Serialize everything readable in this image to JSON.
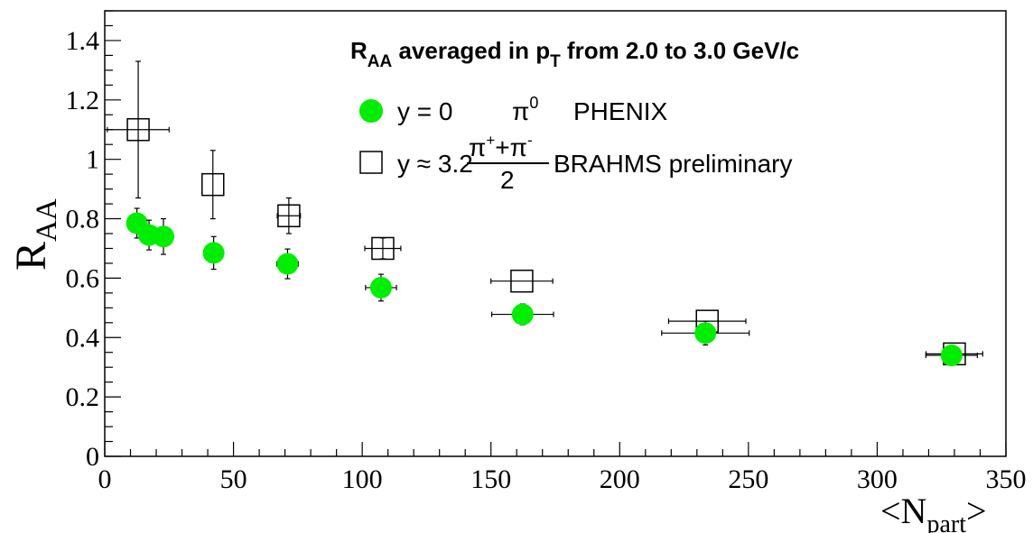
{
  "chart_data": {
    "type": "scatter",
    "title": "",
    "annotation": {
      "header_prefix": "R",
      "header_prefix_sub": "AA",
      "header_mid": " averaged in p",
      "header_mid_sub": "T",
      "header_suffix": " from 2.0 to 3.0 GeV/c"
    },
    "xlabel": {
      "open": "<N",
      "sub": "part",
      "close": ">"
    },
    "ylabel": {
      "main": "R",
      "sub": "AA"
    },
    "xlim": [
      0,
      350
    ],
    "ylim": [
      0,
      1.5
    ],
    "x_ticks": [
      0,
      50,
      100,
      150,
      200,
      250,
      300,
      350
    ],
    "x_tick_labels": [
      "0",
      "50",
      "100",
      "150",
      "200",
      "250",
      "300",
      "350"
    ],
    "y_ticks": [
      0,
      0.2,
      0.4,
      0.6,
      0.8,
      1.0,
      1.2,
      1.4
    ],
    "y_tick_labels": [
      "0",
      "0.2",
      "0.4",
      "0.6",
      "0.8",
      "1",
      "1.2",
      "1.4"
    ],
    "grid": false,
    "legend_position": "top-right",
    "series": [
      {
        "name": "PHENIX",
        "legend_parts": {
          "y": "y = 0",
          "particle": "π",
          "particle_sup": "0",
          "experiment": "PHENIX"
        },
        "marker": "filled-circle",
        "color": "#00ee00",
        "points": [
          {
            "x": 12.5,
            "y": 0.785,
            "xerr": 2.5,
            "yerr": 0.05
          },
          {
            "x": 17.2,
            "y": 0.745,
            "xerr": 3.0,
            "yerr": 0.05
          },
          {
            "x": 22.8,
            "y": 0.74,
            "xerr": 3.0,
            "yerr": 0.06
          },
          {
            "x": 42.3,
            "y": 0.685,
            "xerr": 3.2,
            "yerr": 0.055
          },
          {
            "x": 71.0,
            "y": 0.648,
            "xerr": 4.2,
            "yerr": 0.05
          },
          {
            "x": 107.3,
            "y": 0.568,
            "xerr": 6.0,
            "yerr": 0.045
          },
          {
            "x": 162.3,
            "y": 0.478,
            "xerr": 12.0,
            "yerr": 0.035
          },
          {
            "x": 233.3,
            "y": 0.415,
            "xerr": 17.0,
            "yerr": 0.04
          },
          {
            "x": 328.9,
            "y": 0.34,
            "xerr": 10.0,
            "yerr": 0.02
          }
        ]
      },
      {
        "name": "BRAHMS preliminary",
        "legend_parts": {
          "y": "y ≈ 3.2",
          "num_a": "π",
          "num_a_sup": "+",
          "num_plus": "+π",
          "num_b_sup": "-",
          "den": "2",
          "experiment": "BRAHMS preliminary"
        },
        "marker": "open-square",
        "color": "#000000",
        "points": [
          {
            "x": 13.0,
            "y": 1.1,
            "xerr": 12.0,
            "yerr": 0.23
          },
          {
            "x": 42.0,
            "y": 0.915,
            "xerr": 0.0,
            "yerr": 0.115
          },
          {
            "x": 71.5,
            "y": 0.81,
            "xerr": 4.5,
            "yerr": 0.06
          },
          {
            "x": 108.0,
            "y": 0.7,
            "xerr": 7.0,
            "yerr": 0.035
          },
          {
            "x": 162.0,
            "y": 0.59,
            "xerr": 12.0,
            "yerr": 0.0
          },
          {
            "x": 234.0,
            "y": 0.455,
            "xerr": 15.0,
            "yerr": 0.0
          },
          {
            "x": 330.0,
            "y": 0.345,
            "xerr": 11.0,
            "yerr": 0.015
          }
        ]
      }
    ]
  }
}
